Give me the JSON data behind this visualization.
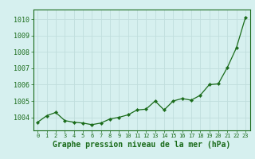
{
  "x": [
    0,
    1,
    2,
    3,
    4,
    5,
    6,
    7,
    8,
    9,
    10,
    11,
    12,
    13,
    14,
    15,
    16,
    17,
    18,
    19,
    20,
    21,
    22,
    23
  ],
  "y": [
    1003.7,
    1004.1,
    1004.3,
    1003.8,
    1003.7,
    1003.65,
    1003.55,
    1003.65,
    1003.9,
    1004.0,
    1004.15,
    1004.45,
    1004.5,
    1005.0,
    1004.45,
    1005.0,
    1005.15,
    1005.05,
    1005.35,
    1006.0,
    1006.05,
    1007.05,
    1008.25,
    1010.1
  ],
  "line_color": "#1a6b1a",
  "marker_color": "#1a6b1a",
  "bg_color": "#d6f0ef",
  "grid_color": "#c0dedd",
  "xlabel": "Graphe pression niveau de la mer (hPa)",
  "xlabel_color": "#1a6b1a",
  "tick_color": "#1a6b1a",
  "spine_color": "#1a6b1a",
  "ylim": [
    1003.2,
    1010.6
  ],
  "yticks": [
    1004,
    1005,
    1006,
    1007,
    1008,
    1009,
    1010
  ],
  "label_fontsize": 6.0,
  "xlabel_fontsize": 7.0
}
